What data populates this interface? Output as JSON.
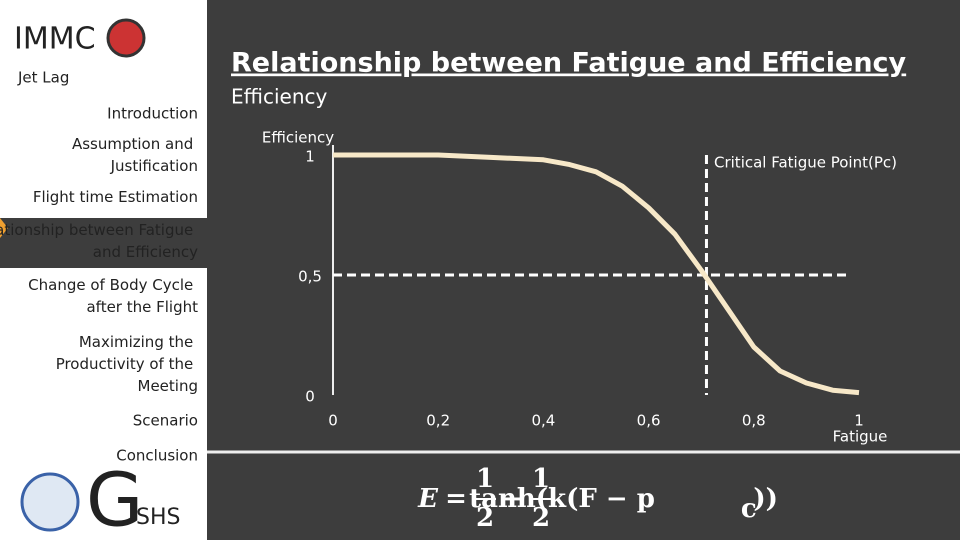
{
  "sidebar": {
    "brand": "IMMC",
    "topic": "Jet Lag",
    "nav": [
      "Introduction",
      "Assumption and Justification",
      "Flight time Estimation",
      "Relationship between Fatigue and Efficiency",
      "Change of Body Cycle after the Flight",
      "Maximizing the Productivity of the Meeting",
      "Scenario",
      "Conclusion"
    ],
    "logo": {
      "initial": "G",
      "rest": "SHS"
    }
  },
  "header": {
    "title": "Relationship between Fatigue and Efficiency",
    "subtitle": "Efficiency"
  },
  "chart_data": {
    "type": "line",
    "x_label": "Fatigue",
    "y_label": "Efficiency",
    "x": [
      0,
      0.1,
      0.2,
      0.3,
      0.4,
      0.45,
      0.5,
      0.55,
      0.6,
      0.65,
      0.7,
      0.75,
      0.8,
      0.85,
      0.9,
      0.95,
      1
    ],
    "values": [
      1,
      1,
      1,
      0.99,
      0.98,
      0.96,
      0.93,
      0.87,
      0.78,
      0.67,
      0.52,
      0.36,
      0.2,
      0.1,
      0.05,
      0.02,
      0.01
    ],
    "color": "#f7e8c8",
    "xlim": [
      0,
      1
    ],
    "ylim": [
      0,
      1
    ],
    "xticks": [
      0,
      {
        "value": 0.2,
        "label": "0,2"
      },
      {
        "value": 0.4,
        "label": "0,4"
      },
      {
        "value": 0.6,
        "label": "0,6"
      },
      {
        "value": 0.8,
        "label": "0,8"
      },
      1
    ],
    "yticks": [
      0,
      {
        "value": 0.5,
        "label": "0,5"
      },
      1
    ],
    "reference_lines": [
      {
        "axis": "x",
        "value": 0.71
      },
      {
        "axis": "y",
        "value": 0.5
      }
    ],
    "annotation": "Critical Fatigue Point(Pc)"
  },
  "formula": {
    "lhs": "E",
    "eq": "=",
    "num1": "1",
    "den1": "2",
    "minus": "−",
    "num2": "1",
    "den2": "2",
    "body": "tanh(k(F − p",
    "sub": "c",
    "close": "))"
  }
}
